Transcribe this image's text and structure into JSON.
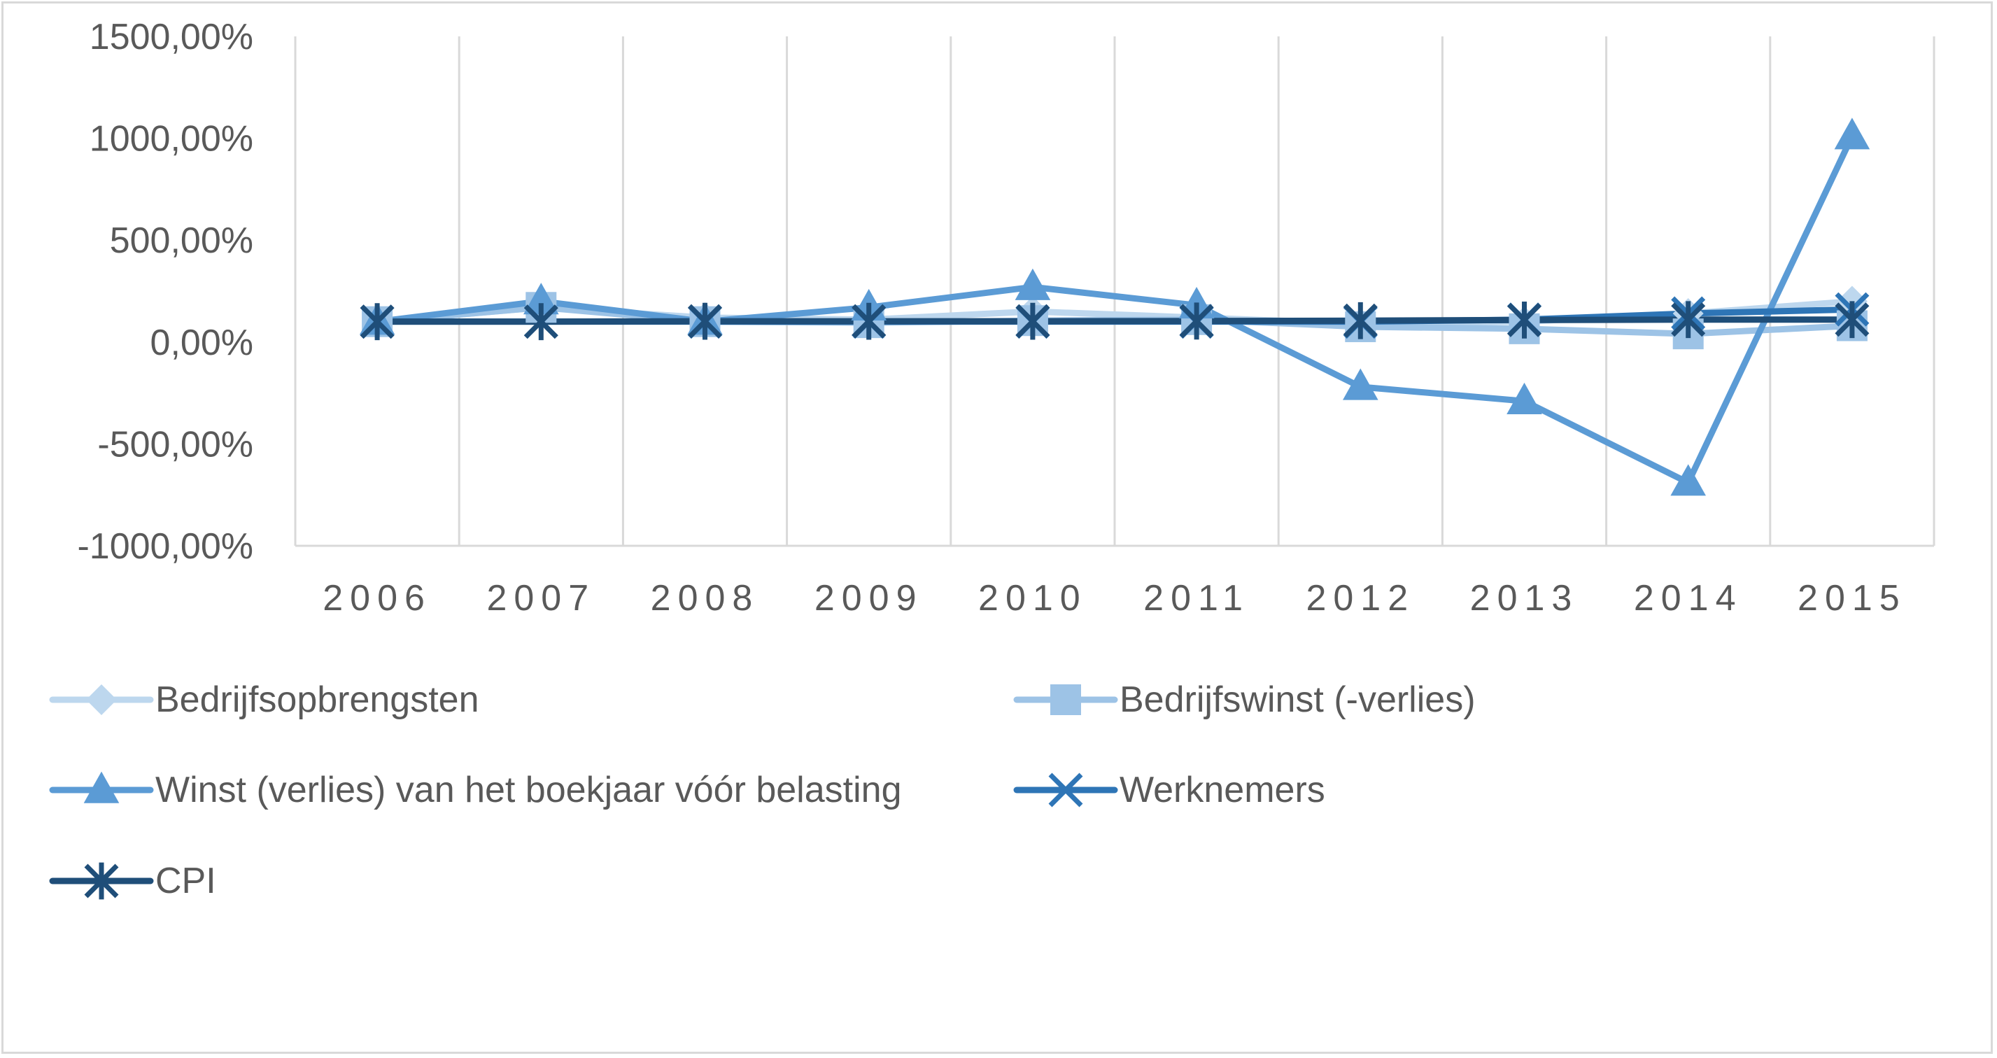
{
  "chart_data": {
    "type": "line",
    "title": "",
    "xlabel": "",
    "ylabel": "",
    "categories": [
      "2006",
      "2007",
      "2008",
      "2009",
      "2010",
      "2011",
      "2012",
      "2013",
      "2014",
      "2015"
    ],
    "ylim": [
      -1000,
      1500
    ],
    "yticks": [
      "-1000,00%",
      "-500,00%",
      "0,00%",
      "500,00%",
      "1000,00%",
      "1500,00%"
    ],
    "ytick_values": [
      -1000,
      -500,
      0,
      500,
      1000,
      1500
    ],
    "grid": "vertical",
    "legend_position": "bottom",
    "series": [
      {
        "name": "Bedrijfsopbrengsten",
        "marker": "diamond",
        "color": "#bdd7ee",
        "values": [
          100,
          170,
          120,
          110,
          150,
          120,
          90,
          100,
          140,
          200
        ]
      },
      {
        "name": "Bedrijfswinst (-verlies)",
        "marker": "square",
        "color": "#9dc3e6",
        "values": [
          100,
          170,
          100,
          95,
          105,
          110,
          75,
          65,
          40,
          80
        ]
      },
      {
        "name": "Winst (verlies) van het boekjaar vóór belasting",
        "marker": "triangle",
        "color": "#5b9bd5",
        "values": [
          100,
          200,
          100,
          170,
          270,
          180,
          -220,
          -290,
          -690,
          1010
        ]
      },
      {
        "name": "Werknemers",
        "marker": "x",
        "color": "#2e75b6",
        "values": [
          100,
          100,
          100,
          100,
          100,
          100,
          100,
          110,
          140,
          160
        ]
      },
      {
        "name": "CPI",
        "marker": "star",
        "color": "#1f4e79",
        "values": [
          100,
          100,
          102,
          102,
          102,
          103,
          105,
          108,
          110,
          110
        ]
      }
    ]
  }
}
